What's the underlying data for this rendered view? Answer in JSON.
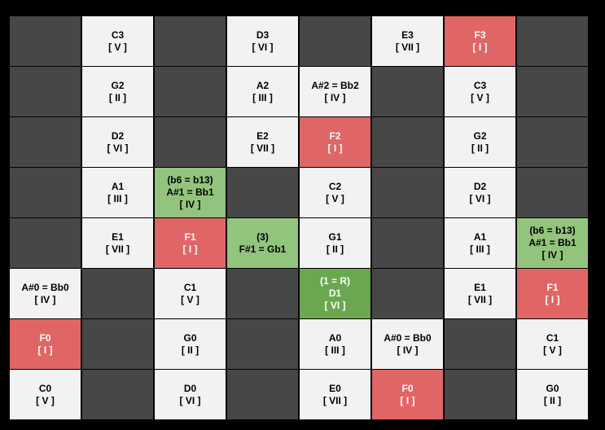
{
  "grid": {
    "rows": [
      [
        {
          "color": "#474747"
        },
        {
          "lines": [
            "C3",
            "[ V ]"
          ],
          "color": "#f2f2f2",
          "text_color": "#000000"
        },
        {
          "color": "#474747"
        },
        {
          "lines": [
            "D3",
            "[ VI ]"
          ],
          "color": "#f2f2f2",
          "text_color": "#000000"
        },
        {
          "color": "#474747"
        },
        {
          "lines": [
            "E3",
            "[ VII ]"
          ],
          "color": "#f2f2f2",
          "text_color": "#000000"
        },
        {
          "lines": [
            "F3",
            "[ I ]"
          ],
          "color": "#e06666",
          "text_color": "#ffffff"
        },
        {
          "color": "#474747"
        }
      ],
      [
        {
          "color": "#474747"
        },
        {
          "lines": [
            "G2",
            "[ II ]"
          ],
          "color": "#f2f2f2",
          "text_color": "#000000"
        },
        {
          "color": "#474747"
        },
        {
          "lines": [
            "A2",
            "[ III ]"
          ],
          "color": "#f2f2f2",
          "text_color": "#000000"
        },
        {
          "lines": [
            "A#2 = Bb2",
            "[ IV ]"
          ],
          "color": "#f2f2f2",
          "text_color": "#000000"
        },
        {
          "color": "#474747"
        },
        {
          "lines": [
            "C3",
            "[ V ]"
          ],
          "color": "#f2f2f2",
          "text_color": "#000000"
        },
        {
          "color": "#474747"
        }
      ],
      [
        {
          "color": "#474747"
        },
        {
          "lines": [
            "D2",
            "[ VI ]"
          ],
          "color": "#f2f2f2",
          "text_color": "#000000"
        },
        {
          "color": "#474747"
        },
        {
          "lines": [
            "E2",
            "[ VII ]"
          ],
          "color": "#f2f2f2",
          "text_color": "#000000"
        },
        {
          "lines": [
            "F2",
            "[ I ]"
          ],
          "color": "#e06666",
          "text_color": "#ffffff"
        },
        {
          "color": "#474747"
        },
        {
          "lines": [
            "G2",
            "[ II ]"
          ],
          "color": "#f2f2f2",
          "text_color": "#000000"
        },
        {
          "color": "#474747"
        }
      ],
      [
        {
          "color": "#474747"
        },
        {
          "lines": [
            "A1",
            "[ III ]"
          ],
          "color": "#f2f2f2",
          "text_color": "#000000"
        },
        {
          "lines": [
            "(b6 = b13)",
            "A#1 = Bb1",
            "[ IV ]"
          ],
          "color": "#93c47d",
          "text_color": "#000000"
        },
        {
          "color": "#474747"
        },
        {
          "lines": [
            "C2",
            "[ V ]"
          ],
          "color": "#f2f2f2",
          "text_color": "#000000"
        },
        {
          "color": "#474747"
        },
        {
          "lines": [
            "D2",
            "[ VI ]"
          ],
          "color": "#f2f2f2",
          "text_color": "#000000"
        },
        {
          "color": "#474747"
        }
      ],
      [
        {
          "color": "#474747"
        },
        {
          "lines": [
            "E1",
            "[ VII ]"
          ],
          "color": "#f2f2f2",
          "text_color": "#000000"
        },
        {
          "lines": [
            "F1",
            "[ I ]"
          ],
          "color": "#e06666",
          "text_color": "#ffffff"
        },
        {
          "lines": [
            "(3)",
            "F#1 = Gb1"
          ],
          "color": "#93c47d",
          "text_color": "#000000"
        },
        {
          "lines": [
            "G1",
            "[ II ]"
          ],
          "color": "#f2f2f2",
          "text_color": "#000000"
        },
        {
          "color": "#474747"
        },
        {
          "lines": [
            "A1",
            "[ III ]"
          ],
          "color": "#f2f2f2",
          "text_color": "#000000"
        },
        {
          "lines": [
            "(b6 = b13)",
            "A#1 = Bb1",
            "[ IV ]"
          ],
          "color": "#93c47d",
          "text_color": "#000000"
        }
      ],
      [
        {
          "lines": [
            "A#0 = Bb0",
            "[ IV ]"
          ],
          "color": "#f2f2f2",
          "text_color": "#000000"
        },
        {
          "color": "#474747"
        },
        {
          "lines": [
            "C1",
            "[ V ]"
          ],
          "color": "#f2f2f2",
          "text_color": "#000000"
        },
        {
          "color": "#474747"
        },
        {
          "lines": [
            "(1 = R)",
            "D1",
            "[ VI ]"
          ],
          "color": "#6aa84f",
          "text_color": "#ffffff"
        },
        {
          "color": "#474747"
        },
        {
          "lines": [
            "E1",
            "[ VII ]"
          ],
          "color": "#f2f2f2",
          "text_color": "#000000"
        },
        {
          "lines": [
            "F1",
            "[ I ]"
          ],
          "color": "#e06666",
          "text_color": "#ffffff"
        }
      ],
      [
        {
          "lines": [
            "F0",
            "[ I ]"
          ],
          "color": "#e06666",
          "text_color": "#ffffff"
        },
        {
          "color": "#474747"
        },
        {
          "lines": [
            "G0",
            "[ II ]"
          ],
          "color": "#f2f2f2",
          "text_color": "#000000"
        },
        {
          "color": "#474747"
        },
        {
          "lines": [
            "A0",
            "[ III ]"
          ],
          "color": "#f2f2f2",
          "text_color": "#000000"
        },
        {
          "lines": [
            "A#0 = Bb0",
            "[ IV ]"
          ],
          "color": "#f2f2f2",
          "text_color": "#000000"
        },
        {
          "color": "#474747"
        },
        {
          "lines": [
            "C1",
            "[ V ]"
          ],
          "color": "#f2f2f2",
          "text_color": "#000000"
        }
      ],
      [
        {
          "lines": [
            "C0",
            "[ V ]"
          ],
          "color": "#f2f2f2",
          "text_color": "#000000"
        },
        {
          "color": "#474747"
        },
        {
          "lines": [
            "D0",
            "[ VI ]"
          ],
          "color": "#f2f2f2",
          "text_color": "#000000"
        },
        {
          "color": "#474747"
        },
        {
          "lines": [
            "E0",
            "[ VII ]"
          ],
          "color": "#f2f2f2",
          "text_color": "#000000"
        },
        {
          "lines": [
            "F0",
            "[ I ]"
          ],
          "color": "#e06666",
          "text_color": "#ffffff"
        },
        {
          "color": "#474747"
        },
        {
          "lines": [
            "G0",
            "[ II ]"
          ],
          "color": "#f2f2f2",
          "text_color": "#000000"
        }
      ]
    ]
  }
}
